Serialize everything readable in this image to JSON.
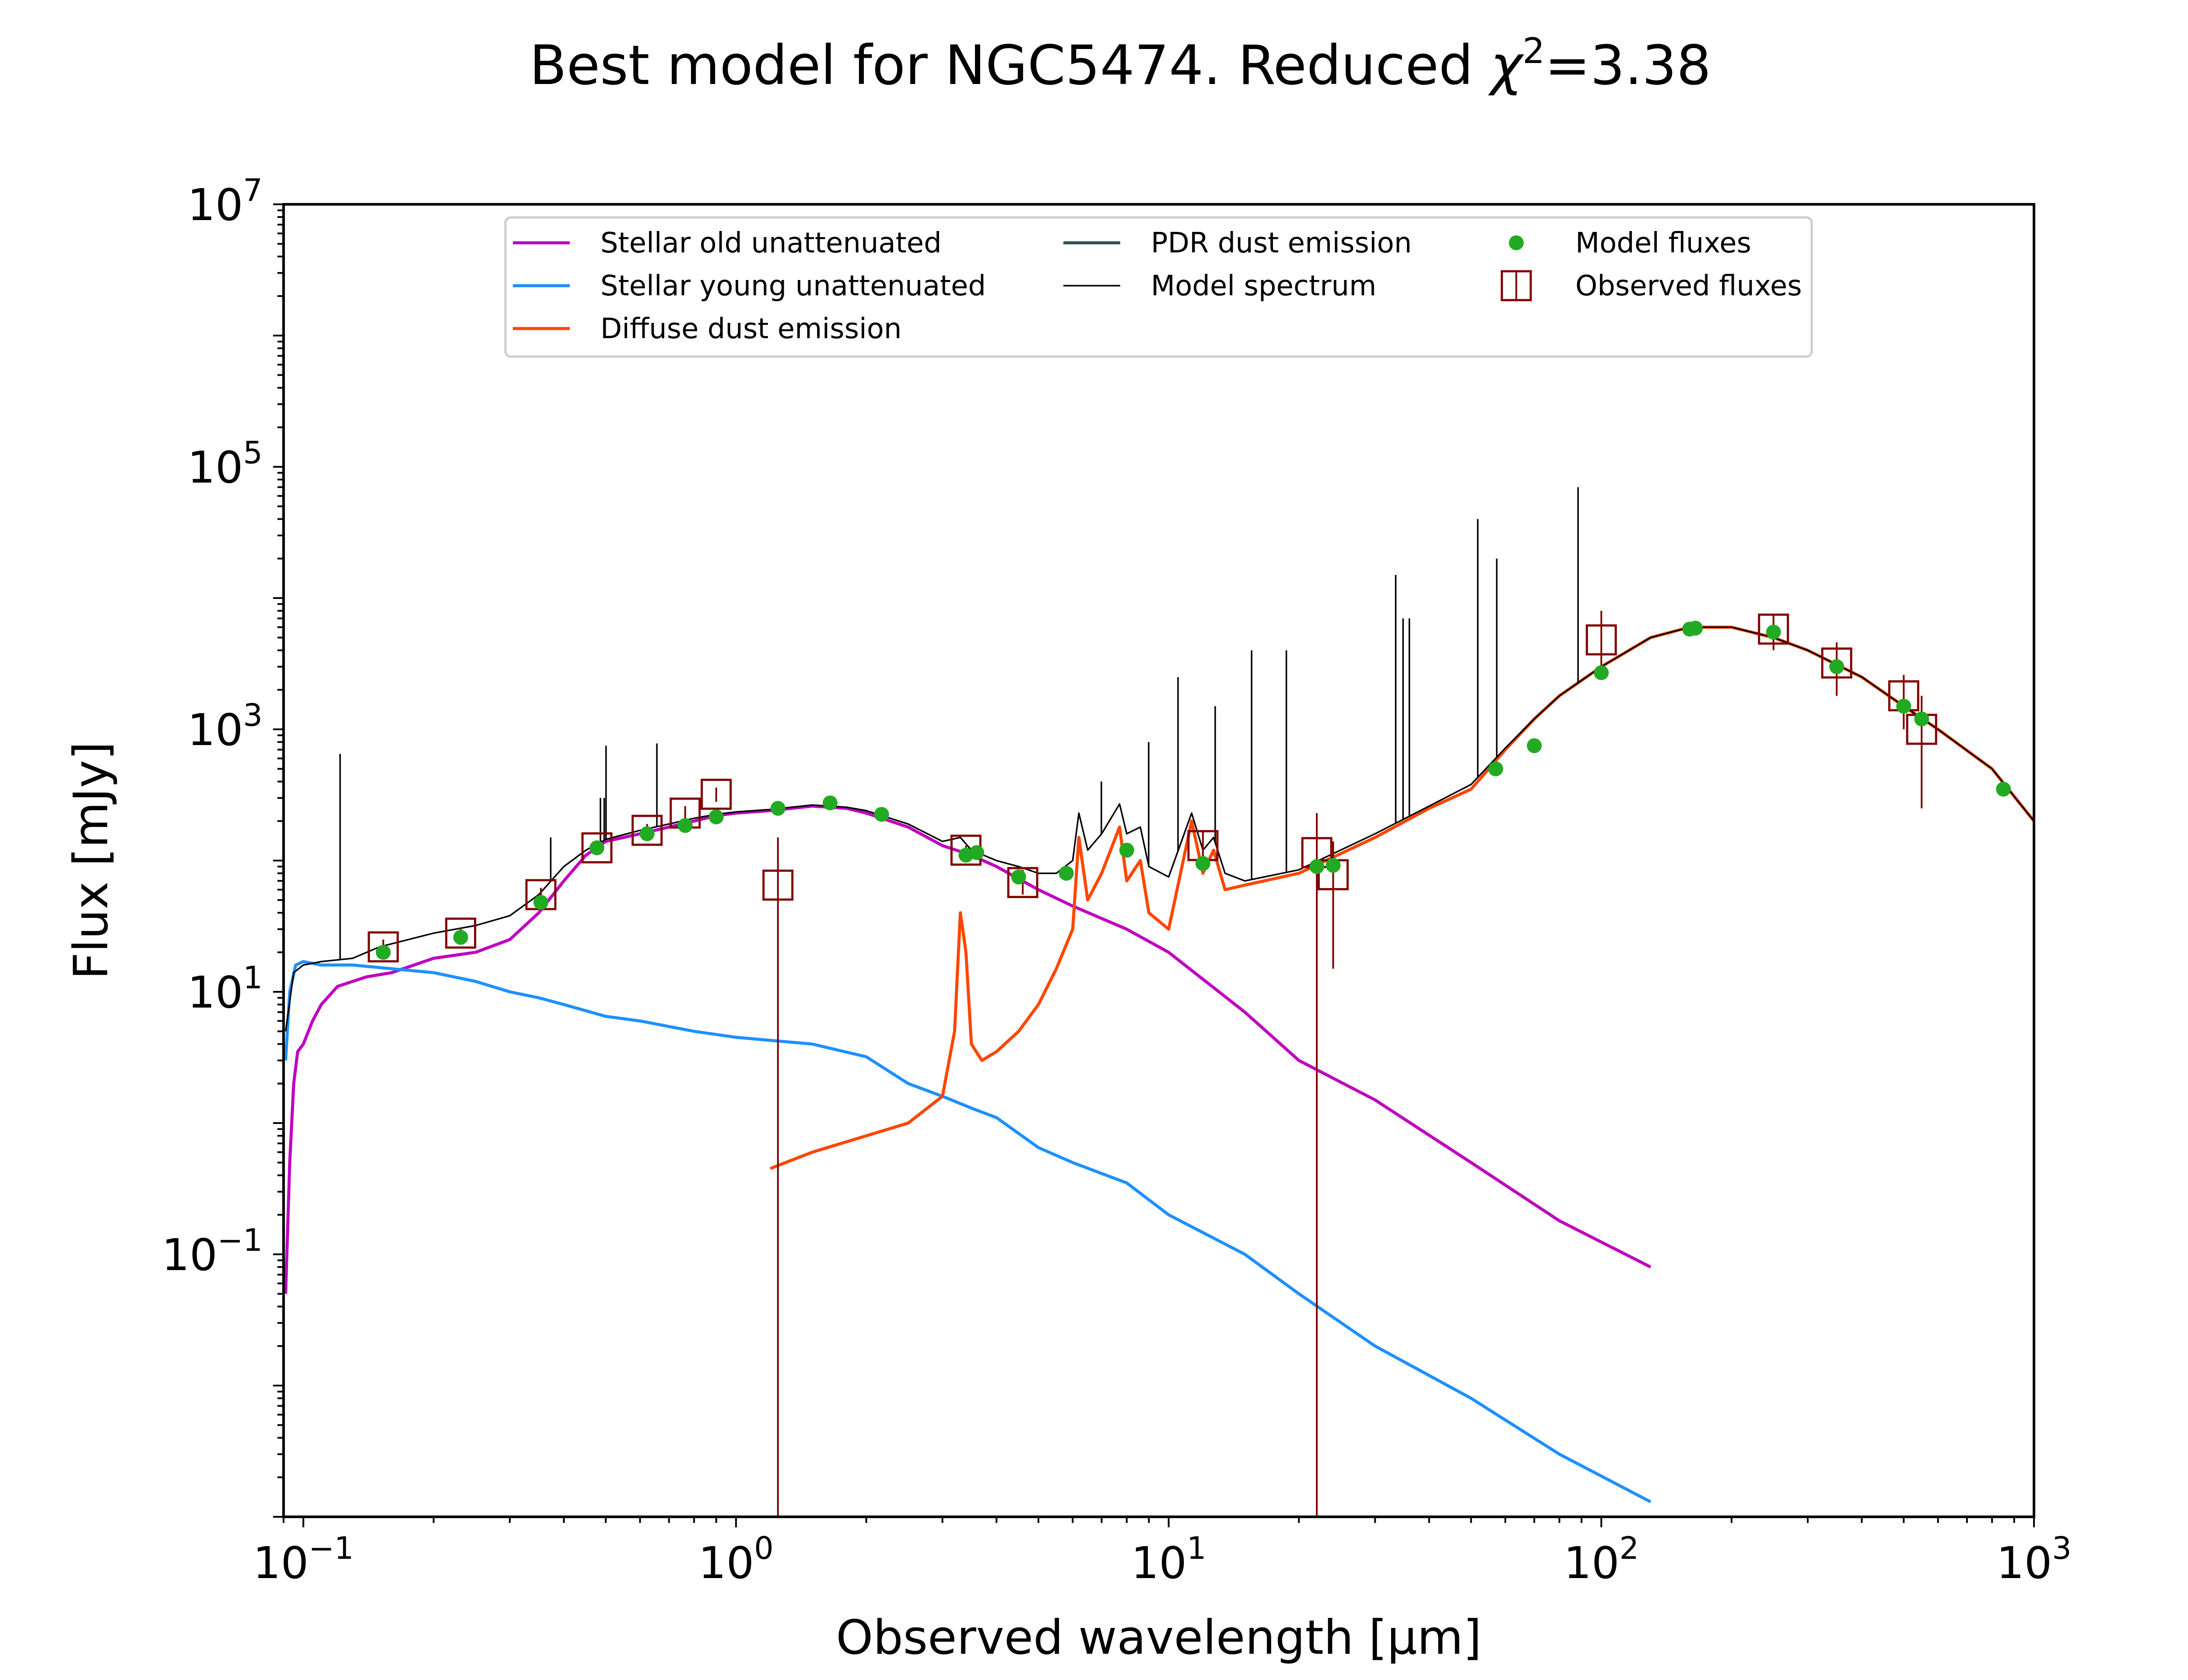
{
  "chart_data": {
    "type": "line",
    "title": "Best model for NGC5474. Reduced χ²=3.38",
    "title_parts": {
      "prefix": "Best model for NGC5474. Reduced ",
      "chi": "χ",
      "sup": "2",
      "suffix": "=3.38"
    },
    "xlabel": "Observed wavelength [μm]",
    "ylabel": "Flux [mJy]",
    "x_scale": "log",
    "y_scale": "log",
    "xlim": [
      0.09,
      1000
    ],
    "ylim": [
      0.001,
      10000000
    ],
    "x_ticks": [
      {
        "value": 0.1,
        "base": "10",
        "exp": "−1"
      },
      {
        "value": 1,
        "base": "10",
        "exp": "0"
      },
      {
        "value": 10,
        "base": "10",
        "exp": "1"
      },
      {
        "value": 100,
        "base": "10",
        "exp": "2"
      },
      {
        "value": 1000,
        "base": "10",
        "exp": "3"
      }
    ],
    "y_ticks": [
      {
        "value": 0.1,
        "base": "10",
        "exp": "−1"
      },
      {
        "value": 10,
        "base": "10",
        "exp": "1"
      },
      {
        "value": 1000,
        "base": "10",
        "exp": "3"
      },
      {
        "value": 100000,
        "base": "10",
        "exp": "5"
      },
      {
        "value": 10000000,
        "base": "10",
        "exp": "7"
      }
    ],
    "grid": false,
    "legend_position": "top-center",
    "series": [
      {
        "name": "Stellar old unattenuated",
        "kind": "line",
        "color": "#bf00bf",
        "points": [
          [
            0.091,
            0.05
          ],
          [
            0.093,
            0.5
          ],
          [
            0.095,
            2
          ],
          [
            0.097,
            3.5
          ],
          [
            0.1,
            4
          ],
          [
            0.105,
            6
          ],
          [
            0.11,
            8
          ],
          [
            0.12,
            11
          ],
          [
            0.13,
            12
          ],
          [
            0.14,
            13
          ],
          [
            0.16,
            14
          ],
          [
            0.2,
            18
          ],
          [
            0.25,
            20
          ],
          [
            0.3,
            25
          ],
          [
            0.35,
            40
          ],
          [
            0.4,
            70
          ],
          [
            0.45,
            110
          ],
          [
            0.5,
            140
          ],
          [
            0.6,
            160
          ],
          [
            0.7,
            180
          ],
          [
            0.8,
            200
          ],
          [
            0.9,
            220
          ],
          [
            1.0,
            230
          ],
          [
            1.2,
            240
          ],
          [
            1.5,
            260
          ],
          [
            1.8,
            250
          ],
          [
            2.0,
            230
          ],
          [
            2.5,
            180
          ],
          [
            3.0,
            130
          ],
          [
            3.5,
            110
          ],
          [
            4.0,
            90
          ],
          [
            5.0,
            60
          ],
          [
            6.0,
            45
          ],
          [
            8.0,
            30
          ],
          [
            10.0,
            20
          ],
          [
            15.0,
            7
          ],
          [
            20.0,
            3
          ],
          [
            30.0,
            1.5
          ],
          [
            50.0,
            0.5
          ],
          [
            80.0,
            0.18
          ],
          [
            130.0,
            0.08
          ]
        ]
      },
      {
        "name": "Stellar young unattenuated",
        "kind": "line",
        "color": "#1e90ff",
        "points": [
          [
            0.091,
            3
          ],
          [
            0.093,
            10
          ],
          [
            0.096,
            16
          ],
          [
            0.1,
            17
          ],
          [
            0.11,
            16
          ],
          [
            0.13,
            16
          ],
          [
            0.16,
            15
          ],
          [
            0.2,
            14
          ],
          [
            0.25,
            12
          ],
          [
            0.3,
            10
          ],
          [
            0.35,
            9
          ],
          [
            0.4,
            8
          ],
          [
            0.5,
            6.5
          ],
          [
            0.6,
            6
          ],
          [
            0.8,
            5
          ],
          [
            1.0,
            4.5
          ],
          [
            1.5,
            4
          ],
          [
            2.0,
            3.2
          ],
          [
            2.5,
            2
          ],
          [
            3.0,
            1.6
          ],
          [
            3.5,
            1.3
          ],
          [
            4.0,
            1.1
          ],
          [
            5.0,
            0.65
          ],
          [
            6.0,
            0.5
          ],
          [
            8.0,
            0.35
          ],
          [
            10.0,
            0.2
          ],
          [
            15.0,
            0.1
          ],
          [
            20.0,
            0.05
          ],
          [
            30.0,
            0.02
          ],
          [
            50.0,
            0.008
          ],
          [
            80.0,
            0.003
          ],
          [
            130.0,
            0.0013
          ]
        ]
      },
      {
        "name": "Diffuse dust emission",
        "kind": "line",
        "color": "#ff4500",
        "points": [
          [
            1.2,
            0.45
          ],
          [
            1.5,
            0.6
          ],
          [
            2.0,
            0.8
          ],
          [
            2.5,
            1.0
          ],
          [
            3.0,
            1.6
          ],
          [
            3.2,
            5
          ],
          [
            3.3,
            40
          ],
          [
            3.4,
            20
          ],
          [
            3.5,
            4
          ],
          [
            3.7,
            3
          ],
          [
            4.0,
            3.5
          ],
          [
            4.5,
            5
          ],
          [
            5.0,
            8
          ],
          [
            5.5,
            15
          ],
          [
            6.0,
            30
          ],
          [
            6.2,
            150
          ],
          [
            6.5,
            50
          ],
          [
            7.0,
            80
          ],
          [
            7.7,
            180
          ],
          [
            8.0,
            70
          ],
          [
            8.6,
            100
          ],
          [
            9.0,
            40
          ],
          [
            10.0,
            30
          ],
          [
            11.3,
            200
          ],
          [
            12.0,
            80
          ],
          [
            12.7,
            120
          ],
          [
            13.5,
            60
          ],
          [
            15.0,
            65
          ],
          [
            20.0,
            80
          ],
          [
            30.0,
            150
          ],
          [
            40.0,
            250
          ],
          [
            50.0,
            350
          ],
          [
            60.0,
            700
          ],
          [
            70.0,
            1200
          ],
          [
            80.0,
            1800
          ],
          [
            100.0,
            3000
          ],
          [
            130.0,
            5000
          ],
          [
            160.0,
            6000
          ],
          [
            200.0,
            6000
          ],
          [
            250.0,
            5000
          ],
          [
            300.0,
            4000
          ],
          [
            400.0,
            2500
          ],
          [
            500.0,
            1500
          ],
          [
            600.0,
            1000
          ],
          [
            800.0,
            500
          ],
          [
            1000.0,
            200
          ]
        ]
      },
      {
        "name": "PDR dust emission",
        "kind": "line",
        "color": "#2f4f4f",
        "points": []
      },
      {
        "name": "Model spectrum",
        "kind": "line",
        "color": "#000000",
        "points": [
          [
            0.091,
            5
          ],
          [
            0.095,
            14
          ],
          [
            0.1,
            16
          ],
          [
            0.11,
            17
          ],
          [
            0.13,
            18
          ],
          [
            0.15,
            22
          ],
          [
            0.2,
            28
          ],
          [
            0.25,
            32
          ],
          [
            0.3,
            38
          ],
          [
            0.35,
            55
          ],
          [
            0.4,
            90
          ],
          [
            0.45,
            120
          ],
          [
            0.5,
            145
          ],
          [
            0.6,
            170
          ],
          [
            0.7,
            190
          ],
          [
            0.8,
            210
          ],
          [
            0.9,
            225
          ],
          [
            1.0,
            235
          ],
          [
            1.2,
            245
          ],
          [
            1.5,
            265
          ],
          [
            1.8,
            255
          ],
          [
            2.0,
            240
          ],
          [
            2.5,
            190
          ],
          [
            3.0,
            140
          ],
          [
            3.3,
            150
          ],
          [
            3.5,
            120
          ],
          [
            4.0,
            100
          ],
          [
            4.5,
            90
          ],
          [
            5.0,
            80
          ],
          [
            5.5,
            80
          ],
          [
            6.0,
            100
          ],
          [
            6.2,
            230
          ],
          [
            6.5,
            120
          ],
          [
            7.0,
            160
          ],
          [
            7.7,
            270
          ],
          [
            8.0,
            160
          ],
          [
            8.6,
            180
          ],
          [
            9.0,
            90
          ],
          [
            10.0,
            75
          ],
          [
            11.3,
            230
          ],
          [
            12.0,
            120
          ],
          [
            12.7,
            150
          ],
          [
            13.5,
            80
          ],
          [
            15.0,
            70
          ],
          [
            20.0,
            85
          ],
          [
            30.0,
            160
          ],
          [
            40.0,
            260
          ],
          [
            50.0,
            380
          ],
          [
            60.0,
            720
          ],
          [
            70.0,
            1200
          ],
          [
            80.0,
            1800
          ],
          [
            100.0,
            3000
          ],
          [
            130.0,
            5000
          ],
          [
            160.0,
            6000
          ],
          [
            200.0,
            6000
          ],
          [
            250.0,
            5000
          ],
          [
            300.0,
            4000
          ],
          [
            400.0,
            2500
          ],
          [
            500.0,
            1500
          ],
          [
            600.0,
            1000
          ],
          [
            800.0,
            500
          ],
          [
            1000.0,
            200
          ]
        ]
      },
      {
        "name": "Model fluxes",
        "kind": "scatter",
        "color": "#22aa22",
        "points": [
          [
            0.153,
            20
          ],
          [
            0.231,
            26
          ],
          [
            0.354,
            48
          ],
          [
            0.477,
            125
          ],
          [
            0.623,
            160
          ],
          [
            0.763,
            185
          ],
          [
            0.9,
            215
          ],
          [
            1.25,
            250
          ],
          [
            1.65,
            275
          ],
          [
            2.17,
            225
          ],
          [
            3.4,
            110
          ],
          [
            3.6,
            115
          ],
          [
            4.5,
            75
          ],
          [
            5.8,
            80
          ],
          [
            8.0,
            120
          ],
          [
            12.0,
            95
          ],
          [
            22.0,
            90
          ],
          [
            24.0,
            92
          ],
          [
            57.0,
            500
          ],
          [
            70.0,
            750
          ],
          [
            100.0,
            2700
          ],
          [
            160.0,
            5800
          ],
          [
            165.0,
            5900
          ],
          [
            250.0,
            5500
          ],
          [
            350.0,
            3000
          ],
          [
            500.0,
            1500
          ],
          [
            550.0,
            1200
          ],
          [
            850.0,
            350
          ]
        ]
      },
      {
        "name": "Observed fluxes",
        "kind": "errorbar",
        "color": "#800000",
        "points": [
          {
            "x": 0.153,
            "y": 22,
            "lo": 19,
            "hi": 25
          },
          {
            "x": 0.231,
            "y": 28,
            "lo": 25,
            "hi": 31
          },
          {
            "x": 0.354,
            "y": 55,
            "lo": 48,
            "hi": 62
          },
          {
            "x": 0.477,
            "y": 125,
            "lo": 110,
            "hi": 140
          },
          {
            "x": 0.623,
            "y": 170,
            "lo": 150,
            "hi": 190
          },
          {
            "x": 0.763,
            "y": 230,
            "lo": 200,
            "hi": 260
          },
          {
            "x": 0.9,
            "y": 320,
            "lo": 280,
            "hi": 360
          },
          {
            "x": 1.25,
            "y": 65,
            "lo": 0.001,
            "hi": 150
          },
          {
            "x": 3.4,
            "y": 120,
            "lo": 110,
            "hi": 130
          },
          {
            "x": 4.6,
            "y": 68,
            "lo": 55,
            "hi": 85
          },
          {
            "x": 12.0,
            "y": 130,
            "lo": 90,
            "hi": 170
          },
          {
            "x": 22.0,
            "y": 115,
            "lo": 0.001,
            "hi": 230
          },
          {
            "x": 24.0,
            "y": 78,
            "lo": 15,
            "hi": 140
          },
          {
            "x": 100.0,
            "y": 4800,
            "lo": 2500,
            "hi": 8000
          },
          {
            "x": 250.0,
            "y": 5800,
            "lo": 4000,
            "hi": 7500
          },
          {
            "x": 350.0,
            "y": 3200,
            "lo": 1800,
            "hi": 4600
          },
          {
            "x": 500.0,
            "y": 1800,
            "lo": 1000,
            "hi": 2600
          },
          {
            "x": 550.0,
            "y": 1000,
            "lo": 250,
            "hi": 1800
          }
        ]
      }
    ],
    "emission_lines": [
      [
        0.1216,
        650
      ],
      [
        0.373,
        150
      ],
      [
        0.486,
        300
      ],
      [
        0.4959,
        300
      ],
      [
        0.5007,
        750
      ],
      [
        0.6563,
        780
      ],
      [
        1.875,
        250
      ],
      [
        6.99,
        400
      ],
      [
        8.99,
        800
      ],
      [
        10.51,
        2500
      ],
      [
        12.81,
        1500
      ],
      [
        15.55,
        4000
      ],
      [
        18.71,
        4000
      ],
      [
        33.48,
        15000
      ],
      [
        34.82,
        7000
      ],
      [
        36.0,
        7000
      ],
      [
        51.81,
        40000
      ],
      [
        57.32,
        20000
      ],
      [
        88.36,
        70000
      ]
    ]
  }
}
